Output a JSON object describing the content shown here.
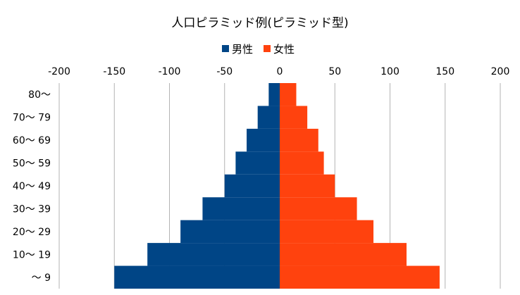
{
  "chart_data": {
    "type": "bar",
    "orientation": "horizontal",
    "title": "人口ピラミッド例(ピラミッド型)",
    "categories": [
      "～ 9",
      "10～ 19",
      "20～ 29",
      "30～ 39",
      "40～ 49",
      "50～ 59",
      "60～ 69",
      "70～ 79",
      "80～"
    ],
    "series": [
      {
        "name": "男性",
        "color": "#004586",
        "values": [
          -150,
          -120,
          -90,
          -70,
          -50,
          -40,
          -30,
          -20,
          -10
        ]
      },
      {
        "name": "女性",
        "color": "#ff420e",
        "values": [
          145,
          115,
          85,
          70,
          50,
          40,
          35,
          25,
          15
        ]
      }
    ],
    "xlim": [
      -200,
      200
    ],
    "xticks": [
      "-200",
      "-150",
      "-100",
      "-50",
      "0",
      "50",
      "100",
      "150",
      "200"
    ],
    "grid": true,
    "legend": "top-center"
  }
}
